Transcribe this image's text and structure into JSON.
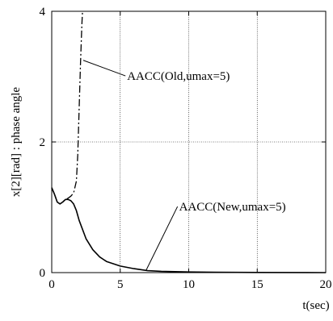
{
  "chart_data": {
    "type": "line",
    "xlabel": "t(sec)",
    "ylabel": "x[2][rad] : phase angle",
    "xlim": [
      0,
      20
    ],
    "ylim": [
      0,
      4
    ],
    "x_ticks": [
      0,
      5,
      10,
      15,
      20
    ],
    "y_ticks": [
      0,
      2,
      4
    ],
    "x_tick_labels": [
      "0",
      "5",
      "10",
      "15",
      "20"
    ],
    "y_tick_labels": [
      "0",
      "2",
      "4"
    ],
    "grid": true,
    "legend": "none",
    "series": [
      {
        "name": "AACC(Old,umax=5)",
        "style": "dash-dot",
        "x": [
          0,
          0.2,
          0.4,
          0.6,
          0.8,
          1.0,
          1.2,
          1.4,
          1.6,
          1.8,
          1.9,
          2.0,
          2.1,
          2.2,
          2.25
        ],
        "y": [
          1.3,
          1.2,
          1.08,
          1.05,
          1.08,
          1.12,
          1.14,
          1.17,
          1.22,
          1.4,
          1.8,
          2.5,
          3.2,
          3.8,
          4.0
        ]
      },
      {
        "name": "AACC(New,umax=5)",
        "style": "solid",
        "x": [
          0,
          0.2,
          0.4,
          0.6,
          0.8,
          1.0,
          1.2,
          1.4,
          1.6,
          1.8,
          2.0,
          2.5,
          3.0,
          3.5,
          4.0,
          5.0,
          6.0,
          7.0,
          8.0,
          10.0,
          12.0,
          15.0,
          20.0
        ],
        "y": [
          1.3,
          1.2,
          1.08,
          1.05,
          1.08,
          1.12,
          1.12,
          1.1,
          1.05,
          0.95,
          0.8,
          0.52,
          0.35,
          0.24,
          0.17,
          0.1,
          0.06,
          0.03,
          0.02,
          0.01,
          0.005,
          0.002,
          0.0
        ]
      }
    ],
    "annotations": [
      {
        "text": "AACC(Old,umax=5)",
        "series": 0,
        "x": 2.3,
        "y": 3.25,
        "label_x": 5.5,
        "label_y": 2.95
      },
      {
        "text": "AACC(New,umax=5)",
        "series": 1,
        "x": 6.9,
        "y": 0.04,
        "label_x": 9.3,
        "label_y": 0.95
      }
    ]
  }
}
